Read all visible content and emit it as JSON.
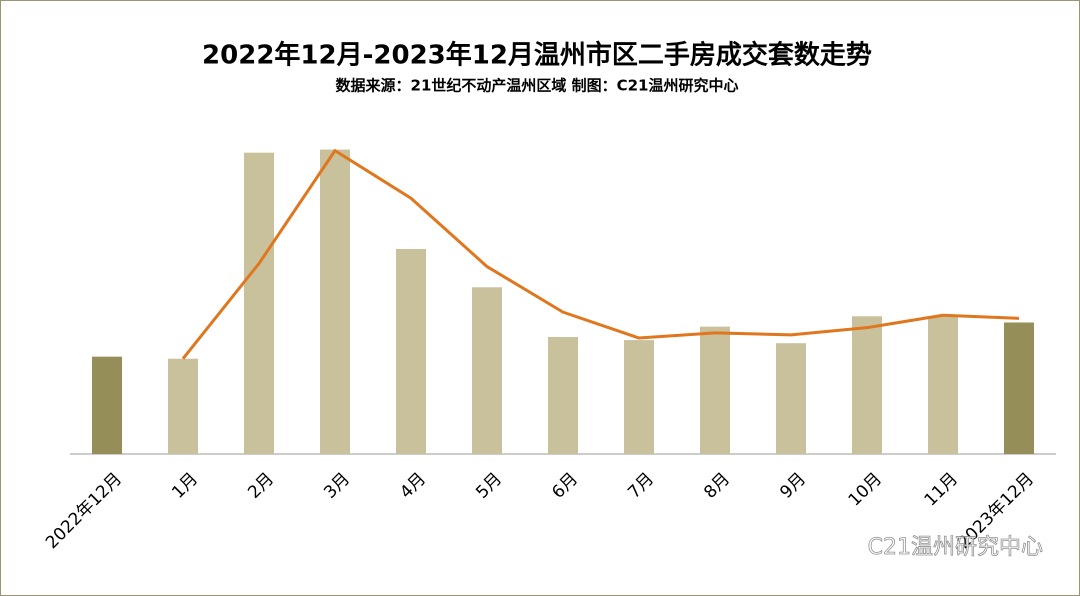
{
  "chart_data": {
    "type": "bar",
    "title": "2022年12月-2023年12月温州市区二手房成交套数走势",
    "subtitle": "数据来源：21世纪不动产温州区域  制图：C21温州研究中心",
    "watermark": "C21温州研究中心",
    "categories": [
      "2022年12月",
      "1月",
      "2月",
      "3月",
      "4月",
      "5月",
      "6月",
      "7月",
      "8月",
      "9月",
      "10月",
      "11月",
      "2023年12月"
    ],
    "values": [
      94,
      92,
      291,
      294,
      198,
      161,
      113,
      110,
      123,
      107,
      133,
      133,
      127
    ],
    "colors": [
      "#968e58",
      "#c8c19c",
      "#c8c19c",
      "#c8c19c",
      "#c8c19c",
      "#c8c19c",
      "#c8c19c",
      "#c8c19c",
      "#c8c19c",
      "#c8c19c",
      "#c8c19c",
      "#c8c19c",
      "#968e58"
    ],
    "line": {
      "color": "#e0761e",
      "values": [
        null,
        92,
        184,
        293,
        247,
        181,
        137,
        112,
        117,
        115,
        122,
        134,
        131
      ]
    },
    "ylim": [
      0,
      310
    ]
  }
}
